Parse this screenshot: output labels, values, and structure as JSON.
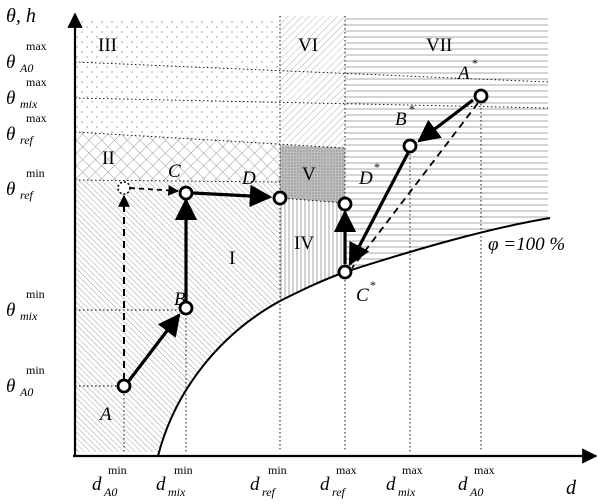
{
  "axes": {
    "y_label": "θ, h",
    "x_label": "d"
  },
  "y_ticks": [
    {
      "symbol": "θ",
      "sub": "A0",
      "sup": "max"
    },
    {
      "symbol": "θ",
      "sub": "mix",
      "sup": "max"
    },
    {
      "symbol": "θ",
      "sub": "ref",
      "sup": "max"
    },
    {
      "symbol": "θ",
      "sub": "ref",
      "sup": "min"
    },
    {
      "symbol": "θ",
      "sub": "mix",
      "sup": "min"
    },
    {
      "symbol": "θ",
      "sub": "A0",
      "sup": "min"
    }
  ],
  "x_ticks": [
    {
      "symbol": "d",
      "sub": "A0",
      "sup": "min"
    },
    {
      "symbol": "d",
      "sub": "mix",
      "sup": "min"
    },
    {
      "symbol": "d",
      "sub": "ref",
      "sup": "min"
    },
    {
      "symbol": "d",
      "sub": "ref",
      "sup": "max"
    },
    {
      "symbol": "d",
      "sub": "mix",
      "sup": "max"
    },
    {
      "symbol": "d",
      "sub": "A0",
      "sup": "max"
    }
  ],
  "regions": [
    "I",
    "II",
    "III",
    "IV",
    "V",
    "VI",
    "VII"
  ],
  "points": {
    "A": "A",
    "B": "B",
    "C": "C",
    "D": "D",
    "A_star": "A",
    "B_star": "B",
    "C_star": "C",
    "D_star": "D",
    "star": "*"
  },
  "curve_label": "φ =100 %"
}
